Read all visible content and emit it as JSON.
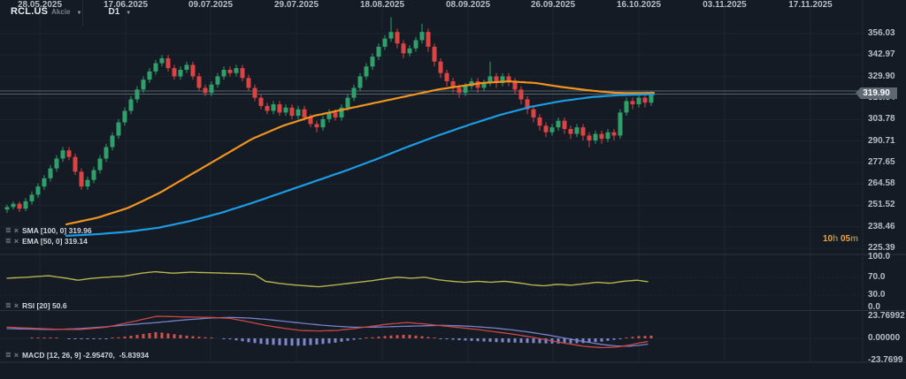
{
  "header": {
    "symbol": "RCL.US",
    "instrument_type": "Akcie",
    "timeframe": "D1"
  },
  "timer": {
    "text": "10h 05m",
    "parts": [
      {
        "t": "10",
        "k": "n"
      },
      {
        "t": "h ",
        "k": "u"
      },
      {
        "t": "05",
        "k": "n"
      },
      {
        "t": "m",
        "k": "u"
      }
    ]
  },
  "price_axis": {
    "ticks": [
      "356.03",
      "342.97",
      "329.90",
      "316.84",
      "303.78",
      "290.71",
      "277.65",
      "264.58",
      "251.52",
      "238.46",
      "225.39"
    ],
    "current_price": "319.90"
  },
  "time_axis": {
    "dates": [
      "28.05.2025",
      "17.06.2025",
      "09.07.2025",
      "29.07.2025",
      "18.08.2025",
      "08.09.2025",
      "26.09.2025",
      "16.10.2025",
      "03.11.2025",
      "17.11.2025"
    ]
  },
  "panes": {
    "price": {
      "indicators": [
        {
          "label": "SMA [100, 0]",
          "value": "319.96"
        },
        {
          "label": "EMA [50, 0]",
          "value": "319.14"
        }
      ]
    },
    "rsi": {
      "label": "RSI [20]",
      "value": "50.6",
      "ticks": [
        "100.0",
        "70.0",
        "30.0",
        "0.0"
      ]
    },
    "macd": {
      "label": "MACD [12, 26, 9]",
      "value": "-2.95470,  -5.83934",
      "ticks": [
        "23.76992",
        "0.00000",
        "-23.7699"
      ]
    }
  },
  "colors": {
    "background": "#141b24",
    "grid": "#1b2430",
    "separator": "#2a3441",
    "axis_text": "#b6bdc6",
    "candle_up": "#2fa06a",
    "candle_down": "#dc4343",
    "sma": "#f0941f",
    "ema": "#1c9ce2",
    "rsi_line": "#b6b44c",
    "macd_line": "#cc4743",
    "signal_line": "#7681c8",
    "hist_pos": "#d5504a",
    "hist_neg": "#7e89d0",
    "price_line": "#59646e",
    "timer": "#f0a23c",
    "badge_bg": "#5d6873"
  },
  "chart_data": {
    "type": "candlestick",
    "symbol": "RCL.US",
    "timeframe": "D1",
    "ylim": [
      225.39,
      356.03
    ],
    "x_axis_dates": [
      "28.05.2025",
      "17.06.2025",
      "09.07.2025",
      "29.07.2025",
      "18.08.2025",
      "08.09.2025",
      "26.09.2025",
      "16.10.2025",
      "03.11.2025",
      "17.11.2025"
    ],
    "candles_ohlc": [
      [
        249,
        252,
        247,
        250.5
      ],
      [
        250.5,
        254,
        249,
        252.5
      ],
      [
        252.5,
        254,
        247.5,
        249.5
      ],
      [
        249.5,
        256,
        248,
        254
      ],
      [
        254,
        260,
        252,
        258
      ],
      [
        258,
        265,
        256,
        263
      ],
      [
        263,
        270,
        261,
        268
      ],
      [
        268,
        276,
        266,
        274
      ],
      [
        274,
        282,
        272,
        280
      ],
      [
        280,
        287,
        278,
        285
      ],
      [
        285,
        287,
        279,
        281
      ],
      [
        281,
        283,
        270,
        272
      ],
      [
        272,
        274,
        261,
        263
      ],
      [
        263,
        269,
        261,
        267
      ],
      [
        267,
        275,
        265,
        273
      ],
      [
        273,
        282,
        271,
        280
      ],
      [
        280,
        289,
        278,
        287
      ],
      [
        287,
        296,
        285,
        294
      ],
      [
        294,
        304,
        292,
        302
      ],
      [
        302,
        311,
        300,
        309
      ],
      [
        309,
        318,
        307,
        316
      ],
      [
        316,
        324,
        314,
        322
      ],
      [
        322,
        330,
        320,
        328
      ],
      [
        328,
        335,
        326,
        333
      ],
      [
        333,
        340,
        331,
        338
      ],
      [
        338,
        343,
        336,
        341
      ],
      [
        341,
        343,
        333,
        335
      ],
      [
        335,
        337,
        328,
        330
      ],
      [
        330,
        336,
        328,
        334
      ],
      [
        334,
        339,
        332,
        337
      ],
      [
        337,
        339,
        328,
        330
      ],
      [
        330,
        332,
        321,
        323
      ],
      [
        323,
        325,
        318,
        320
      ],
      [
        320,
        327,
        318,
        325
      ],
      [
        325,
        332,
        323,
        330
      ],
      [
        330,
        336,
        328,
        334
      ],
      [
        334,
        336,
        330,
        332
      ],
      [
        332,
        337,
        330,
        335
      ],
      [
        335,
        337,
        327,
        329
      ],
      [
        329,
        331,
        321,
        323
      ],
      [
        323,
        325,
        315,
        317
      ],
      [
        317,
        319,
        310,
        312
      ],
      [
        312,
        314,
        307,
        309
      ],
      [
        309,
        315,
        307,
        313
      ],
      [
        313,
        315,
        306,
        308
      ],
      [
        308,
        313,
        306,
        311
      ],
      [
        311,
        313,
        304,
        306
      ],
      [
        306,
        312,
        304,
        310
      ],
      [
        310,
        312,
        303,
        305
      ],
      [
        305,
        307,
        299,
        301
      ],
      [
        301,
        303,
        296,
        299
      ],
      [
        299,
        306,
        297,
        304
      ],
      [
        304,
        310,
        302,
        308
      ],
      [
        308,
        310,
        303,
        305
      ],
      [
        305,
        313,
        303,
        311
      ],
      [
        311,
        319,
        309,
        317
      ],
      [
        317,
        325,
        315,
        323
      ],
      [
        323,
        332,
        321,
        330
      ],
      [
        330,
        338,
        328,
        336
      ],
      [
        336,
        344,
        334,
        342
      ],
      [
        342,
        350,
        340,
        348
      ],
      [
        348,
        355,
        346,
        353
      ],
      [
        353,
        366,
        351,
        357
      ],
      [
        357,
        359,
        347,
        350
      ],
      [
        350,
        352,
        341,
        344
      ],
      [
        344,
        349,
        342,
        347
      ],
      [
        347,
        354,
        345,
        352
      ],
      [
        352,
        362,
        350,
        357
      ],
      [
        357,
        359,
        345,
        348
      ],
      [
        348,
        350,
        336,
        339
      ],
      [
        339,
        341,
        329,
        332
      ],
      [
        332,
        334,
        324,
        327
      ],
      [
        327,
        329,
        320,
        323
      ],
      [
        323,
        325,
        317,
        320
      ],
      [
        320,
        326,
        318,
        324
      ],
      [
        324,
        329,
        322,
        327
      ],
      [
        327,
        329,
        320,
        323
      ],
      [
        323,
        328,
        321,
        326
      ],
      [
        326,
        339,
        324,
        330
      ],
      [
        330,
        332,
        323,
        326
      ],
      [
        326,
        332,
        324,
        330
      ],
      [
        330,
        332,
        324,
        327
      ],
      [
        327,
        329,
        319,
        322
      ],
      [
        322,
        324,
        313,
        316
      ],
      [
        316,
        318,
        307,
        310
      ],
      [
        310,
        312,
        302,
        305
      ],
      [
        305,
        307,
        297,
        300
      ],
      [
        300,
        302,
        293,
        296
      ],
      [
        296,
        301,
        294,
        299
      ],
      [
        299,
        305,
        297,
        303
      ],
      [
        303,
        305,
        295,
        298
      ],
      [
        298,
        300,
        292,
        295
      ],
      [
        295,
        301,
        293,
        299
      ],
      [
        299,
        301,
        291,
        294
      ],
      [
        294,
        296,
        287,
        291
      ],
      [
        291,
        297,
        289,
        295
      ],
      [
        295,
        297,
        289,
        292
      ],
      [
        292,
        298,
        290,
        296
      ],
      [
        296,
        298,
        291,
        294
      ],
      [
        294,
        310,
        292,
        308
      ],
      [
        308,
        317,
        306,
        315
      ],
      [
        315,
        317,
        310,
        313
      ],
      [
        313,
        319,
        311,
        317
      ],
      [
        317,
        319,
        311,
        314
      ],
      [
        314,
        321,
        312,
        319.9
      ]
    ],
    "overlays": [
      {
        "name": "SMA(100,0)",
        "last": 319.96,
        "color": "#f0941f",
        "points": [
          [
            75,
            240
          ],
          [
            110,
            244
          ],
          [
            145,
            250
          ],
          [
            180,
            259
          ],
          [
            215,
            270
          ],
          [
            250,
            281
          ],
          [
            285,
            292
          ],
          [
            320,
            300
          ],
          [
            355,
            306
          ],
          [
            390,
            310
          ],
          [
            425,
            314
          ],
          [
            460,
            318
          ],
          [
            495,
            322
          ],
          [
            520,
            324
          ],
          [
            545,
            326
          ],
          [
            575,
            327
          ],
          [
            605,
            326
          ],
          [
            635,
            323.5
          ],
          [
            665,
            321.5
          ],
          [
            695,
            320
          ],
          [
            715,
            319.8
          ],
          [
            740,
            319.96
          ]
        ]
      },
      {
        "name": "EMA(50,0)",
        "last": 319.14,
        "color": "#1c9ce2",
        "points": [
          [
            75,
            233
          ],
          [
            110,
            234
          ],
          [
            145,
            235.5
          ],
          [
            180,
            238
          ],
          [
            215,
            242
          ],
          [
            250,
            247
          ],
          [
            285,
            253
          ],
          [
            320,
            259.5
          ],
          [
            355,
            266
          ],
          [
            390,
            272.5
          ],
          [
            425,
            279.5
          ],
          [
            460,
            287
          ],
          [
            495,
            294
          ],
          [
            530,
            300.5
          ],
          [
            565,
            306.5
          ],
          [
            600,
            311.5
          ],
          [
            635,
            315
          ],
          [
            670,
            317.5
          ],
          [
            700,
            318.6
          ],
          [
            740,
            319.14
          ]
        ]
      }
    ],
    "rsi": {
      "period": 20,
      "last": 50.6,
      "points": [
        [
          8,
          58
        ],
        [
          30,
          60
        ],
        [
          55,
          63
        ],
        [
          75,
          58
        ],
        [
          88,
          54
        ],
        [
          105,
          58
        ],
        [
          120,
          60
        ],
        [
          140,
          62
        ],
        [
          160,
          68
        ],
        [
          175,
          71
        ],
        [
          195,
          68
        ],
        [
          215,
          70
        ],
        [
          235,
          69
        ],
        [
          255,
          68
        ],
        [
          275,
          67
        ],
        [
          288,
          65
        ],
        [
          300,
          52
        ],
        [
          315,
          48
        ],
        [
          330,
          45
        ],
        [
          345,
          43
        ],
        [
          360,
          41
        ],
        [
          375,
          44
        ],
        [
          390,
          47
        ],
        [
          405,
          50
        ],
        [
          420,
          53
        ],
        [
          435,
          57
        ],
        [
          450,
          60
        ],
        [
          465,
          58
        ],
        [
          480,
          60
        ],
        [
          495,
          55
        ],
        [
          510,
          52
        ],
        [
          525,
          50
        ],
        [
          540,
          52
        ],
        [
          555,
          50
        ],
        [
          570,
          52
        ],
        [
          585,
          49
        ],
        [
          600,
          45
        ],
        [
          615,
          43
        ],
        [
          630,
          46
        ],
        [
          645,
          44
        ],
        [
          660,
          47
        ],
        [
          675,
          50
        ],
        [
          690,
          48
        ],
        [
          705,
          52
        ],
        [
          720,
          54
        ],
        [
          735,
          50.6
        ]
      ]
    },
    "macd": {
      "params": [
        12,
        26,
        9
      ],
      "last_macd": -2.9547,
      "last_signal": -5.83934,
      "macd_points": [
        [
          8,
          12
        ],
        [
          60,
          10
        ],
        [
          90,
          9.5
        ],
        [
          120,
          12
        ],
        [
          150,
          18
        ],
        [
          177,
          23.8
        ],
        [
          210,
          23
        ],
        [
          240,
          22.5
        ],
        [
          260,
          21.5
        ],
        [
          280,
          18
        ],
        [
          300,
          14
        ],
        [
          320,
          11
        ],
        [
          340,
          8.5
        ],
        [
          360,
          8
        ],
        [
          380,
          8.5
        ],
        [
          400,
          10.5
        ],
        [
          420,
          13
        ],
        [
          440,
          15.5
        ],
        [
          460,
          17
        ],
        [
          480,
          15.5
        ],
        [
          500,
          13.5
        ],
        [
          520,
          11.5
        ],
        [
          540,
          9.5
        ],
        [
          560,
          7
        ],
        [
          580,
          4.5
        ],
        [
          600,
          1.5
        ],
        [
          620,
          -2
        ],
        [
          640,
          -5.5
        ],
        [
          660,
          -8.5
        ],
        [
          680,
          -10
        ],
        [
          695,
          -9.5
        ],
        [
          710,
          -7.5
        ],
        [
          722,
          -5
        ],
        [
          735,
          -2.95
        ]
      ],
      "signal_points": [
        [
          8,
          10.5
        ],
        [
          60,
          9.5
        ],
        [
          90,
          10.5
        ],
        [
          120,
          12.5
        ],
        [
          150,
          15
        ],
        [
          177,
          17
        ],
        [
          210,
          20
        ],
        [
          240,
          22
        ],
        [
          260,
          22.5
        ],
        [
          280,
          22
        ],
        [
          300,
          20.5
        ],
        [
          320,
          18.5
        ],
        [
          340,
          16.5
        ],
        [
          360,
          14.5
        ],
        [
          380,
          13
        ],
        [
          400,
          12
        ],
        [
          420,
          12
        ],
        [
          440,
          12.5
        ],
        [
          460,
          13
        ],
        [
          480,
          13.5
        ],
        [
          500,
          14
        ],
        [
          520,
          13.5
        ],
        [
          540,
          12.5
        ],
        [
          560,
          11
        ],
        [
          580,
          9
        ],
        [
          600,
          6.5
        ],
        [
          620,
          3.5
        ],
        [
          640,
          0
        ],
        [
          660,
          -3.5
        ],
        [
          680,
          -6.5
        ],
        [
          695,
          -8
        ],
        [
          710,
          -8.5
        ],
        [
          722,
          -7.5
        ],
        [
          735,
          -5.84
        ]
      ]
    }
  }
}
